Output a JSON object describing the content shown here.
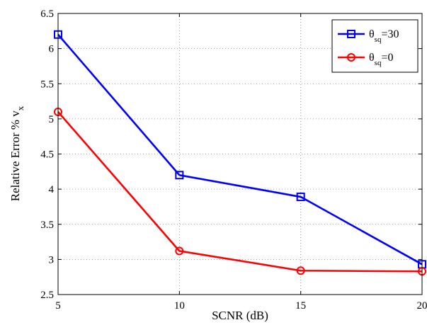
{
  "chart_data": {
    "type": "line",
    "xlabel": "SCNR (dB)",
    "ylabel": {
      "main": "Relative Error %  v",
      "sub": "x"
    },
    "xlim": [
      5,
      20
    ],
    "ylim": [
      2.5,
      6.5
    ],
    "xticks": [
      "5",
      "10",
      "15",
      "20"
    ],
    "yticks": [
      "2.5",
      "3",
      "3.5",
      "4",
      "4.5",
      "5",
      "5.5",
      "6",
      "6.5"
    ],
    "grid": true,
    "legend_position": "top-right",
    "x": [
      5,
      10,
      15,
      20
    ],
    "series": [
      {
        "name": {
          "symbol": "θ",
          "sub": "sq",
          "rest": "=30"
        },
        "color": "#0000ff",
        "marker": "square",
        "values": [
          6.2,
          4.2,
          3.89,
          2.93
        ]
      },
      {
        "name": {
          "symbol": "θ",
          "sub": "sq",
          "rest": "=0"
        },
        "color": "#ff0000",
        "marker": "circle",
        "values": [
          5.1,
          3.12,
          2.84,
          2.83
        ]
      }
    ]
  }
}
